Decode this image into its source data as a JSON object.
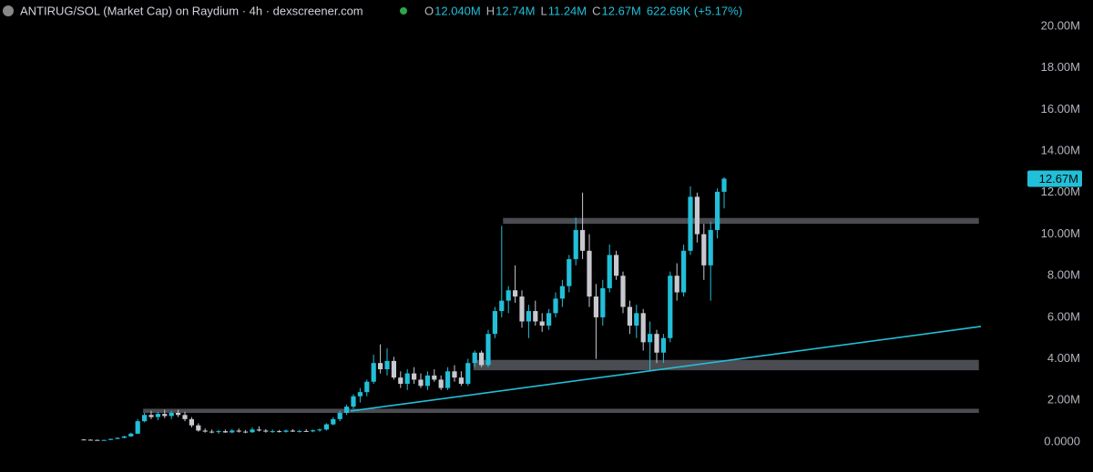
{
  "chart_data": {
    "type": "candlestick",
    "title": "ANTIRUG/SOL (Market Cap) on Raydium · 4h · dexscreener.com",
    "legend": {
      "items": [
        {
          "key": "O",
          "value": "12.040M"
        },
        {
          "key": "H",
          "value": "12.74M"
        },
        {
          "key": "L",
          "value": "11.24M"
        },
        {
          "key": "C",
          "value": "12.67M"
        }
      ],
      "change": "622.69K (+5.17%)"
    },
    "up_color": "#22bfd8",
    "down_color": "#c8c8cf",
    "ylim": [
      0,
      20
    ],
    "yticks": [
      {
        "value": 0,
        "label": "0.0000"
      },
      {
        "value": 2,
        "label": "2.00M"
      },
      {
        "value": 4,
        "label": "4.00M"
      },
      {
        "value": 6,
        "label": "6.00M"
      },
      {
        "value": 8,
        "label": "8.00M"
      },
      {
        "value": 10,
        "label": "10.00M"
      },
      {
        "value": 12,
        "label": "12.00M"
      },
      {
        "value": 14,
        "label": "14.00M"
      },
      {
        "value": 16,
        "label": "16.00M"
      },
      {
        "value": 18,
        "label": "18.00M"
      },
      {
        "value": 20,
        "label": "20.00M"
      }
    ],
    "last_price": {
      "value": 12.67,
      "label": "12.67M"
    },
    "zones": [
      {
        "start": 62.2,
        "end": 132.8,
        "low": 10.5,
        "high": 10.78
      },
      {
        "start": 57.8,
        "end": 132.8,
        "low": 3.45,
        "high": 3.95
      },
      {
        "start": 8.8,
        "end": 132.8,
        "low": 1.4,
        "high": 1.6
      }
    ],
    "trend_line": {
      "x": [
        39.6,
        133.1
      ],
      "y": [
        1.49,
        5.56
      ],
      "color": "#22bfd8"
    },
    "ohlc": [
      [
        0.12,
        0.14,
        0.1,
        0.11
      ],
      [
        0.11,
        0.13,
        0.09,
        0.1
      ],
      [
        0.1,
        0.12,
        0.08,
        0.09
      ],
      [
        0.09,
        0.11,
        0.07,
        0.1
      ],
      [
        0.1,
        0.16,
        0.09,
        0.15
      ],
      [
        0.15,
        0.22,
        0.13,
        0.2
      ],
      [
        0.2,
        0.3,
        0.18,
        0.27
      ],
      [
        0.27,
        0.45,
        0.25,
        0.4
      ],
      [
        0.4,
        1.1,
        0.38,
        1.0
      ],
      [
        1.0,
        1.4,
        0.95,
        1.3
      ],
      [
        1.3,
        1.5,
        1.1,
        1.2
      ],
      [
        1.2,
        1.45,
        1.05,
        1.35
      ],
      [
        1.35,
        1.55,
        1.15,
        1.25
      ],
      [
        1.25,
        1.5,
        1.1,
        1.4
      ],
      [
        1.4,
        1.55,
        1.2,
        1.3
      ],
      [
        1.3,
        1.45,
        1.0,
        1.1
      ],
      [
        1.1,
        1.2,
        0.7,
        0.8
      ],
      [
        0.8,
        0.9,
        0.5,
        0.55
      ],
      [
        0.55,
        0.65,
        0.45,
        0.5
      ],
      [
        0.5,
        0.6,
        0.42,
        0.48
      ],
      [
        0.48,
        0.58,
        0.4,
        0.52
      ],
      [
        0.52,
        0.6,
        0.44,
        0.46
      ],
      [
        0.46,
        0.62,
        0.42,
        0.55
      ],
      [
        0.55,
        0.65,
        0.45,
        0.5
      ],
      [
        0.5,
        0.58,
        0.42,
        0.47
      ],
      [
        0.47,
        0.7,
        0.44,
        0.6
      ],
      [
        0.6,
        0.75,
        0.5,
        0.55
      ],
      [
        0.55,
        0.62,
        0.45,
        0.5
      ],
      [
        0.5,
        0.6,
        0.44,
        0.52
      ],
      [
        0.52,
        0.58,
        0.46,
        0.49
      ],
      [
        0.49,
        0.6,
        0.45,
        0.55
      ],
      [
        0.55,
        0.62,
        0.48,
        0.5
      ],
      [
        0.5,
        0.58,
        0.45,
        0.53
      ],
      [
        0.53,
        0.62,
        0.48,
        0.51
      ],
      [
        0.51,
        0.6,
        0.47,
        0.56
      ],
      [
        0.56,
        0.65,
        0.5,
        0.6
      ],
      [
        0.6,
        0.9,
        0.55,
        0.85
      ],
      [
        0.85,
        1.2,
        0.8,
        1.1
      ],
      [
        1.1,
        1.5,
        1.0,
        1.4
      ],
      [
        1.4,
        1.8,
        1.3,
        1.7
      ],
      [
        1.7,
        2.3,
        1.6,
        2.2
      ],
      [
        2.2,
        2.6,
        1.9,
        2.4
      ],
      [
        2.4,
        3.0,
        2.2,
        2.9
      ],
      [
        2.9,
        4.2,
        2.8,
        3.8
      ],
      [
        3.8,
        4.7,
        3.3,
        3.5
      ],
      [
        3.5,
        4.5,
        3.2,
        3.9
      ],
      [
        3.9,
        4.1,
        3.0,
        3.1
      ],
      [
        3.1,
        3.4,
        2.6,
        2.8
      ],
      [
        2.8,
        3.5,
        2.5,
        3.3
      ],
      [
        3.3,
        3.6,
        2.8,
        3.0
      ],
      [
        3.0,
        3.3,
        2.6,
        2.7
      ],
      [
        2.7,
        3.4,
        2.5,
        3.2
      ],
      [
        3.2,
        3.5,
        2.9,
        3.0
      ],
      [
        3.0,
        3.2,
        2.5,
        2.6
      ],
      [
        2.6,
        3.6,
        2.5,
        3.4
      ],
      [
        3.4,
        3.7,
        2.9,
        3.1
      ],
      [
        3.1,
        3.4,
        2.7,
        2.8
      ],
      [
        2.8,
        4.0,
        2.7,
        3.8
      ],
      [
        3.8,
        4.4,
        3.6,
        4.3
      ],
      [
        4.3,
        4.4,
        3.6,
        3.7
      ],
      [
        3.7,
        5.4,
        3.6,
        5.2
      ],
      [
        5.2,
        6.5,
        5.0,
        6.3
      ],
      [
        6.3,
        10.4,
        6.0,
        6.8
      ],
      [
        6.8,
        7.5,
        6.2,
        7.3
      ],
      [
        7.3,
        8.5,
        6.7,
        7.0
      ],
      [
        7.0,
        7.3,
        5.5,
        5.8
      ],
      [
        5.8,
        6.6,
        5.0,
        6.3
      ],
      [
        6.3,
        6.8,
        5.6,
        5.8
      ],
      [
        5.8,
        6.2,
        5.3,
        5.6
      ],
      [
        5.6,
        6.4,
        5.4,
        6.2
      ],
      [
        6.2,
        7.2,
        6.0,
        6.9
      ],
      [
        6.9,
        7.8,
        6.5,
        7.5
      ],
      [
        7.5,
        9.0,
        7.2,
        8.8
      ],
      [
        8.8,
        10.8,
        8.5,
        10.2
      ],
      [
        10.2,
        12.0,
        8.8,
        9.2
      ],
      [
        9.2,
        10.0,
        6.5,
        7.0
      ],
      [
        7.0,
        7.6,
        4.0,
        6.0
      ],
      [
        6.0,
        7.8,
        5.6,
        7.4
      ],
      [
        7.4,
        9.5,
        7.2,
        9.0
      ],
      [
        9.0,
        9.2,
        7.8,
        8.0
      ],
      [
        8.0,
        8.2,
        6.2,
        6.5
      ],
      [
        6.5,
        6.8,
        5.2,
        5.6
      ],
      [
        5.6,
        6.6,
        5.0,
        6.2
      ],
      [
        6.2,
        6.4,
        4.4,
        4.8
      ],
      [
        4.8,
        5.8,
        3.4,
        5.2
      ],
      [
        5.2,
        5.4,
        3.8,
        4.3
      ],
      [
        4.3,
        5.2,
        3.8,
        5.0
      ],
      [
        5.0,
        8.2,
        4.8,
        8.0
      ],
      [
        8.0,
        8.6,
        6.8,
        7.2
      ],
      [
        7.2,
        9.5,
        7.0,
        9.2
      ],
      [
        9.2,
        12.3,
        9.0,
        11.8
      ],
      [
        11.8,
        12.0,
        9.6,
        10.0
      ],
      [
        10.0,
        10.5,
        7.8,
        8.5
      ],
      [
        8.5,
        10.6,
        6.8,
        10.2
      ],
      [
        10.2,
        12.2,
        9.8,
        12.04
      ],
      [
        12.04,
        12.74,
        11.24,
        12.67
      ]
    ]
  }
}
